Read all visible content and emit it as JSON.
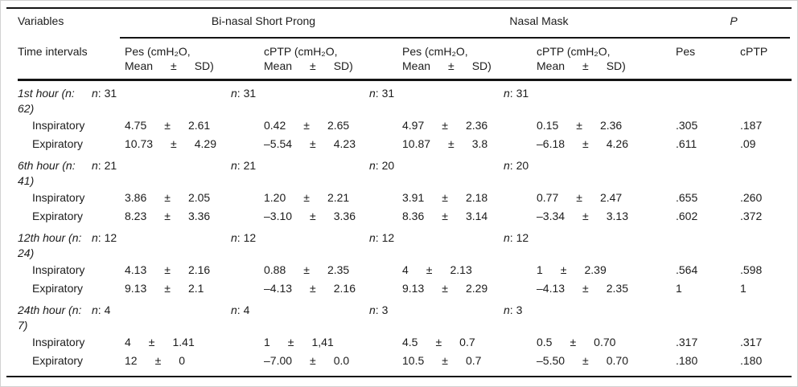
{
  "table": {
    "header": {
      "variables": "Variables",
      "time_intervals": "Time intervals",
      "group_binasal": "Bi-nasal Short Prong",
      "group_nasal_mask": "Nasal Mask",
      "group_p": "P",
      "measure_cols": [
        {
          "line1": "Pes (cmH₂O,",
          "mean": "Mean",
          "pm": "±",
          "sd": "SD)"
        },
        {
          "line1": "cPTP (cmH₂O,",
          "mean": "Mean",
          "pm": "±",
          "sd": "SD)"
        },
        {
          "line1": "Pes (cmH₂O,",
          "mean": "Mean",
          "pm": "±",
          "sd": "SD)"
        },
        {
          "line1": "cPTP (cmH₂O,",
          "mean": "Mean",
          "pm": "±",
          "sd": "SD)"
        }
      ],
      "p_pes": "Pes",
      "p_cptp": "cPTP"
    },
    "sections": [
      {
        "interval": "1st hour (n: 62)",
        "n_label": "n",
        "n_values": [
          ": 31",
          ": 31",
          ": 31",
          ": 31"
        ],
        "rows": [
          {
            "label": "Inspiratory",
            "cells": [
              {
                "mean": "4.75",
                "pm": "±",
                "sd": "2.61"
              },
              {
                "mean": "0.42",
                "pm": "±",
                "sd": "2.65"
              },
              {
                "mean": "4.97",
                "pm": "±",
                "sd": "2.36"
              },
              {
                "mean": "0.15",
                "pm": "±",
                "sd": "2.36"
              }
            ],
            "p_pes": ".305",
            "p_cptp": ".187"
          },
          {
            "label": "Expiratory",
            "cells": [
              {
                "mean": "10.73",
                "pm": "±",
                "sd": "4.29"
              },
              {
                "mean": "–5.54",
                "pm": "±",
                "sd": "4.23"
              },
              {
                "mean": "10.87",
                "pm": "±",
                "sd": "3.8"
              },
              {
                "mean": "–6.18",
                "pm": "±",
                "sd": "4.26"
              }
            ],
            "p_pes": ".611",
            "p_cptp": ".09"
          }
        ]
      },
      {
        "interval": "6th hour (n: 41)",
        "n_label": "n",
        "n_values": [
          ": 21",
          ": 21",
          ": 20",
          ": 20"
        ],
        "rows": [
          {
            "label": "Inspiratory",
            "cells": [
              {
                "mean": "3.86",
                "pm": "±",
                "sd": "2.05"
              },
              {
                "mean": "1.20",
                "pm": "±",
                "sd": "2.21"
              },
              {
                "mean": "3.91",
                "pm": "±",
                "sd": "2.18"
              },
              {
                "mean": "0.77",
                "pm": "±",
                "sd": "2.47"
              }
            ],
            "p_pes": ".655",
            "p_cptp": ".260"
          },
          {
            "label": "Expiratory",
            "cells": [
              {
                "mean": "8.23",
                "pm": "±",
                "sd": "3.36"
              },
              {
                "mean": "–3.10",
                "pm": "±",
                "sd": "3.36"
              },
              {
                "mean": "8.36",
                "pm": "±",
                "sd": "3.14"
              },
              {
                "mean": "–3.34",
                "pm": "±",
                "sd": "3.13"
              }
            ],
            "p_pes": ".602",
            "p_cptp": ".372"
          }
        ]
      },
      {
        "interval": "12th hour (n: 24)",
        "n_label": "n",
        "n_values": [
          ": 12",
          ": 12",
          ": 12",
          ": 12"
        ],
        "rows": [
          {
            "label": "Inspiratory",
            "cells": [
              {
                "mean": "4.13",
                "pm": "±",
                "sd": "2.16"
              },
              {
                "mean": "0.88",
                "pm": "±",
                "sd": "2.35"
              },
              {
                "mean": "4",
                "pm": "±",
                "sd": "2.13"
              },
              {
                "mean": "1",
                "pm": "±",
                "sd": "2.39"
              }
            ],
            "p_pes": ".564",
            "p_cptp": ".598"
          },
          {
            "label": "Expiratory",
            "cells": [
              {
                "mean": "9.13",
                "pm": "±",
                "sd": "2.1"
              },
              {
                "mean": "–4.13",
                "pm": "±",
                "sd": "2.16"
              },
              {
                "mean": "9.13",
                "pm": "±",
                "sd": "2.29"
              },
              {
                "mean": "–4.13",
                "pm": "±",
                "sd": "2.35"
              }
            ],
            "p_pes": "1",
            "p_cptp": "1"
          }
        ]
      },
      {
        "interval": "24th hour (n: 7)",
        "n_label": "n",
        "n_values": [
          ": 4",
          ": 4",
          ": 3",
          ": 3"
        ],
        "rows": [
          {
            "label": "Inspiratory",
            "cells": [
              {
                "mean": "4",
                "pm": "±",
                "sd": "1.41"
              },
              {
                "mean": "1",
                "pm": "±",
                "sd": "1,41"
              },
              {
                "mean": "4.5",
                "pm": "±",
                "sd": "0.7"
              },
              {
                "mean": "0.5",
                "pm": "±",
                "sd": "0.70"
              }
            ],
            "p_pes": ".317",
            "p_cptp": ".317"
          },
          {
            "label": "Expiratory",
            "cells": [
              {
                "mean": "12",
                "pm": "±",
                "sd": "0"
              },
              {
                "mean": "–7.00",
                "pm": "±",
                "sd": "0.0"
              },
              {
                "mean": "10.5",
                "pm": "±",
                "sd": "0.7"
              },
              {
                "mean": "–5.50",
                "pm": "±",
                "sd": "0.70"
              }
            ],
            "p_pes": ".180",
            "p_cptp": ".180"
          }
        ]
      }
    ]
  }
}
